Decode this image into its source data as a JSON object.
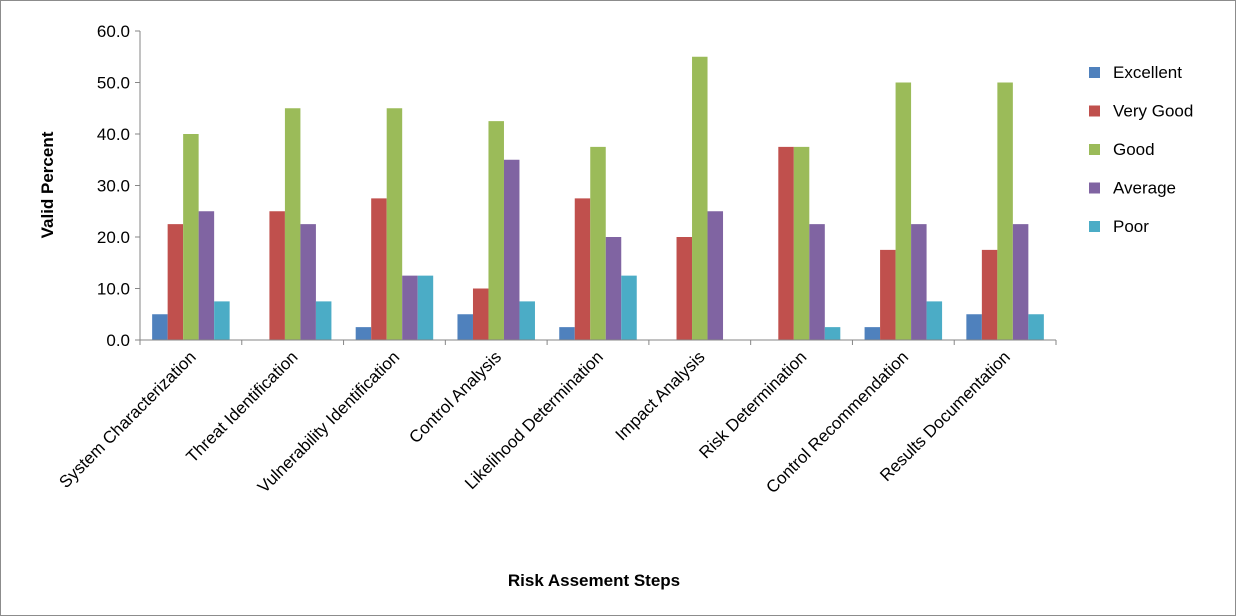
{
  "chart_data": {
    "type": "bar",
    "title": "",
    "xlabel": "Risk Assement Steps",
    "ylabel": "Valid Percent",
    "ylim": [
      0,
      60
    ],
    "ytick_step": 10,
    "ytick_format_decimals": 1,
    "grid": false,
    "legend_position": "right",
    "categories": [
      "System Characterization",
      "Threat Identification",
      "Vulnerability Identification",
      "Control Analysis",
      "Likelihood Determination",
      "Impact Analysis",
      "Risk Determination",
      "Control Recommendation",
      "Results Documentation"
    ],
    "series": [
      {
        "name": "Excellent",
        "color": "#4f81bd",
        "values": [
          5.0,
          0.0,
          2.5,
          5.0,
          2.5,
          0.0,
          0.0,
          2.5,
          5.0
        ]
      },
      {
        "name": "Very Good",
        "color": "#c0504d",
        "values": [
          22.5,
          25.0,
          27.5,
          10.0,
          27.5,
          20.0,
          37.5,
          17.5,
          17.5
        ]
      },
      {
        "name": "Good",
        "color": "#9bbb59",
        "values": [
          40.0,
          45.0,
          45.0,
          42.5,
          37.5,
          55.0,
          37.5,
          50.0,
          50.0
        ]
      },
      {
        "name": "Average",
        "color": "#8064a2",
        "values": [
          25.0,
          22.5,
          12.5,
          35.0,
          20.0,
          25.0,
          22.5,
          22.5,
          22.5
        ]
      },
      {
        "name": "Poor",
        "color": "#4bacc6",
        "values": [
          7.5,
          7.5,
          12.5,
          7.5,
          12.5,
          0.0,
          2.5,
          7.5,
          5.0
        ]
      }
    ]
  }
}
